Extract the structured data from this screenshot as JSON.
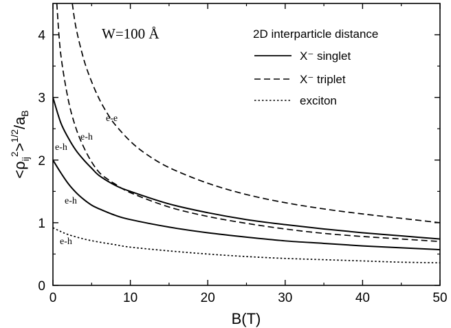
{
  "chart_data": {
    "type": "line",
    "title": "",
    "xlabel": "B(T)",
    "ylabel": "<ρ_ij^2>^(1/2)/a_B",
    "xlim": [
      0,
      50
    ],
    "ylim": [
      0,
      4.5
    ],
    "xticks": [
      "0",
      "10",
      "20",
      "30",
      "40",
      "50"
    ],
    "yticks": [
      "0",
      "1",
      "2",
      "3",
      "4"
    ],
    "grid": false,
    "annotation": "W=100 Å",
    "legend": {
      "title": "2D interparticle distance",
      "position": "top-right",
      "entries": [
        {
          "label": "X⁻ singlet",
          "style": "solid"
        },
        {
          "label": "X⁻ triplet",
          "style": "dashed"
        },
        {
          "label": "exciton",
          "style": "dotted"
        }
      ]
    },
    "series": [
      {
        "group": "X⁻ singlet",
        "label": "e-e",
        "style": "solid",
        "x": [
          0,
          1,
          2,
          3,
          4,
          5,
          6,
          8,
          10,
          15,
          20,
          25,
          30,
          35,
          40,
          45,
          50
        ],
        "y": [
          3.0,
          2.6,
          2.35,
          2.15,
          2.0,
          1.87,
          1.75,
          1.6,
          1.5,
          1.3,
          1.16,
          1.05,
          0.97,
          0.9,
          0.84,
          0.79,
          0.74
        ]
      },
      {
        "group": "X⁻ singlet",
        "label": "e-h",
        "style": "solid",
        "x": [
          0,
          1,
          2,
          3,
          4,
          5,
          6,
          8,
          10,
          15,
          20,
          25,
          30,
          35,
          40,
          45,
          50
        ],
        "y": [
          2.0,
          1.8,
          1.62,
          1.48,
          1.37,
          1.28,
          1.22,
          1.12,
          1.05,
          0.93,
          0.84,
          0.77,
          0.71,
          0.67,
          0.63,
          0.6,
          0.57
        ]
      },
      {
        "group": "X⁻ triplet",
        "label": "e-e",
        "style": "dashed",
        "x": [
          2.5,
          3,
          4,
          5,
          6,
          7,
          8,
          10,
          12,
          15,
          20,
          25,
          30,
          35,
          40,
          45,
          50
        ],
        "y": [
          4.5,
          4.1,
          3.6,
          3.25,
          2.97,
          2.75,
          2.57,
          2.3,
          2.1,
          1.88,
          1.63,
          1.45,
          1.32,
          1.22,
          1.14,
          1.07,
          1.0
        ]
      },
      {
        "group": "X⁻ triplet",
        "label": "e-h",
        "style": "dashed",
        "x": [
          0.5,
          1,
          2,
          3,
          4,
          5,
          6,
          7,
          8,
          10,
          15,
          20,
          25,
          30,
          35,
          40,
          45,
          50
        ],
        "y": [
          4.5,
          3.7,
          2.95,
          2.5,
          2.2,
          1.97,
          1.8,
          1.7,
          1.62,
          1.48,
          1.25,
          1.1,
          0.99,
          0.9,
          0.83,
          0.78,
          0.74,
          0.7
        ]
      },
      {
        "group": "exciton",
        "label": "e-h",
        "style": "dotted",
        "x": [
          0,
          1,
          2,
          4,
          6,
          8,
          10,
          15,
          20,
          25,
          30,
          35,
          40,
          45,
          50
        ],
        "y": [
          0.92,
          0.86,
          0.81,
          0.74,
          0.69,
          0.65,
          0.61,
          0.55,
          0.5,
          0.46,
          0.43,
          0.41,
          0.39,
          0.37,
          0.36
        ]
      }
    ]
  }
}
